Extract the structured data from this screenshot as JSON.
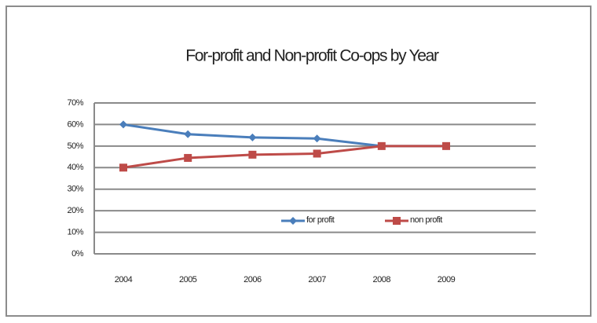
{
  "chart_data": {
    "type": "line",
    "title": "For-profit and Non-profit Co-ops by Year",
    "categories": [
      "2004",
      "2005",
      "2006",
      "2007",
      "2008",
      "2009"
    ],
    "series": [
      {
        "name": "for profit",
        "color": "#4a7ebb",
        "values": [
          60,
          55.5,
          54,
          53.5,
          50,
          50
        ]
      },
      {
        "name": "non profit",
        "color": "#be4b48",
        "values": [
          40,
          44.5,
          46,
          46.5,
          50,
          50
        ]
      }
    ],
    "ylim": [
      0,
      70
    ],
    "yticks": [
      {
        "value": 0,
        "label": "0%"
      },
      {
        "value": 10,
        "label": "10%"
      },
      {
        "value": 20,
        "label": "20%"
      },
      {
        "value": 30,
        "label": "30%"
      },
      {
        "value": 40,
        "label": "40%"
      },
      {
        "value": 50,
        "label": "50%"
      },
      {
        "value": 60,
        "label": "60%"
      },
      {
        "value": 70,
        "label": "70%"
      }
    ],
    "grid": true
  }
}
